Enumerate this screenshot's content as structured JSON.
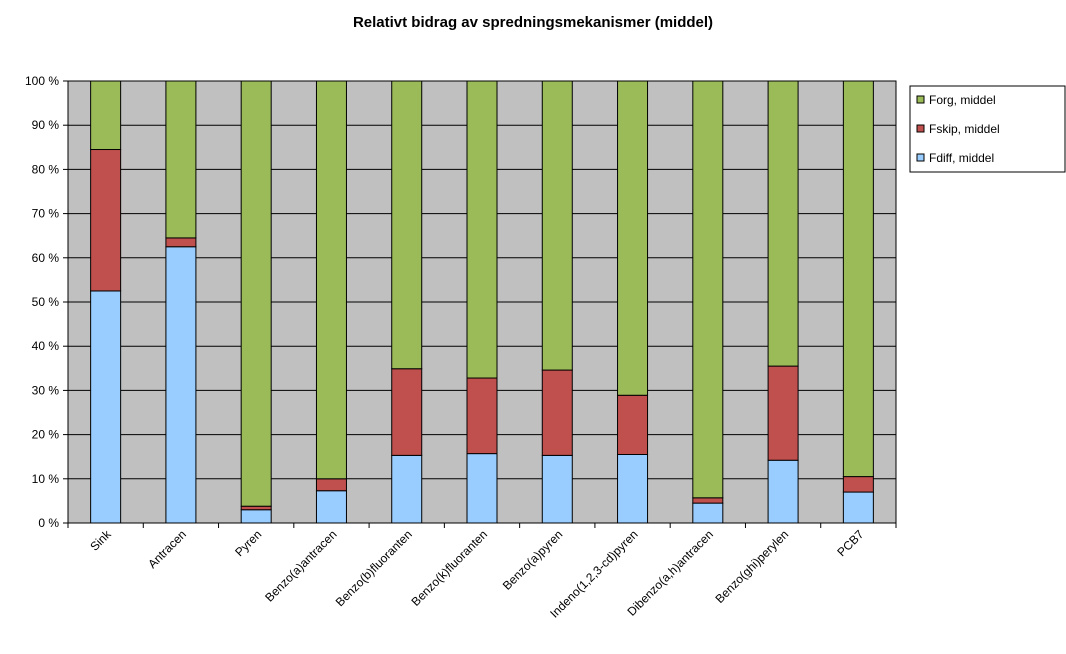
{
  "chart_data": {
    "type": "bar",
    "stacked": "percent",
    "title": "Relativt bidrag av spredningsmekanismer (middel)",
    "xlabel": "",
    "ylabel": "",
    "ylim": [
      0,
      100
    ],
    "y_ticks": [
      0,
      10,
      20,
      30,
      40,
      50,
      60,
      70,
      80,
      90,
      100
    ],
    "y_tick_labels": [
      "0 %",
      "10 %",
      "20 %",
      "30 %",
      "40 %",
      "50 %",
      "60 %",
      "70 %",
      "80 %",
      "90 %",
      "100 %"
    ],
    "grid": "horizontal",
    "plot_background": "#C0C0C0",
    "legend_position": "right",
    "categories": [
      "Sink",
      "Antracen",
      "Pyren",
      "Benzo(a)antracen",
      "Benzo(b)fluoranten",
      "Benzo(k)fluoranten",
      "Benzo(a)pyren",
      "Indeno(1,2,3-cd)pyren",
      "Dibenzo(a,h)antracen",
      "Benzo(ghi)perylen",
      "PCB7"
    ],
    "series": [
      {
        "name": "Fdiff, middel",
        "color": "#99CCFF",
        "values": [
          52.5,
          62.5,
          3.0,
          7.3,
          15.3,
          15.7,
          15.3,
          15.5,
          4.5,
          14.2,
          7.0
        ]
      },
      {
        "name": "Fskip, middel",
        "color": "#C0504D",
        "values": [
          32.0,
          2.0,
          0.8,
          2.7,
          19.6,
          17.1,
          19.3,
          13.4,
          1.2,
          21.3,
          3.5
        ]
      },
      {
        "name": "Forg, middel",
        "color": "#9BBB59",
        "values": [
          15.5,
          35.5,
          96.2,
          90.0,
          65.1,
          67.2,
          65.4,
          71.1,
          94.3,
          64.5,
          89.5
        ]
      }
    ],
    "legend_order": [
      "Forg, middel",
      "Fskip, middel",
      "Fdiff, middel"
    ]
  }
}
